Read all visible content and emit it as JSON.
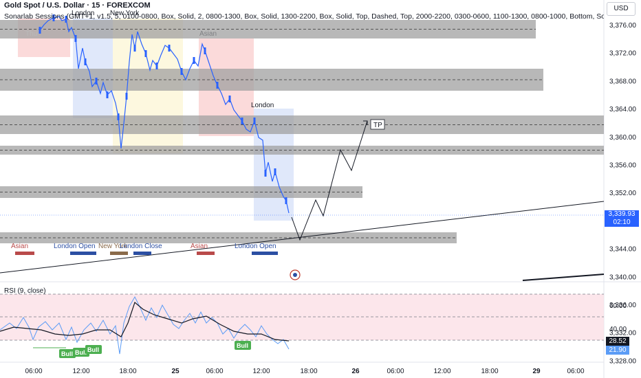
{
  "header": {
    "symbol": "Gold Spot / U.S. Dollar · 15 · FOREXCOM",
    "indicator": "Sonarlab Sessions (GMT+1, v1.5, 5, 0100-0800, Box, Solid, 2, 0800-1300, Box, Solid, 1300-2200, Box, Solid, Top, Dashed, Top, 2000-2200, 0300-0600, 1100-1300, 0800-1000, Bottom, Sol",
    "currency": "USD"
  },
  "chart_data": {
    "type": "line",
    "y_axis": {
      "ticks": [
        "3,376.00",
        "3,372.00",
        "3,368.00",
        "3,364.00",
        "3,360.00",
        "3,356.00",
        "3,352.00",
        "3,348.00",
        "3,344.00",
        "3,340.00",
        "3,336.00",
        "3,332.00",
        "3,328.00"
      ]
    },
    "x_axis": {
      "ticks": [
        "06:00",
        "12:00",
        "18:00",
        "25",
        "06:00",
        "12:00",
        "18:00",
        "26",
        "06:00",
        "12:00",
        "18:00",
        "29",
        "06:00"
      ]
    },
    "current_price": {
      "value": "3,339.93",
      "countdown": "02:10"
    },
    "sessions": [
      {
        "label": "Thu",
        "kind": "asian"
      },
      {
        "label": "London",
        "kind": "london"
      },
      {
        "label": "New York",
        "kind": "newyork"
      },
      {
        "label": "Asian",
        "kind": "asian"
      },
      {
        "label": "London",
        "kind": "london"
      }
    ],
    "session_legend": [
      "Asian",
      "London Open",
      "New York",
      "London Close",
      "Asian",
      "London Open"
    ],
    "annotations": {
      "target": "TP"
    },
    "rsi": {
      "label": "RSI (9, close)",
      "ticks": [
        "60.00",
        "40.00"
      ],
      "values": [
        "28.52",
        "21.90"
      ],
      "signals": [
        "Bull",
        "Bull",
        "Bull",
        "Bull"
      ]
    },
    "colors": {
      "asian": "#f8bbbb",
      "london": "#c7d6f5",
      "newyork": "#fbf3c4",
      "zone": "#a0a0a0",
      "candle": "#2962ff",
      "rsi_fill": "#fbe0e6",
      "bull": "#4caf50"
    }
  }
}
